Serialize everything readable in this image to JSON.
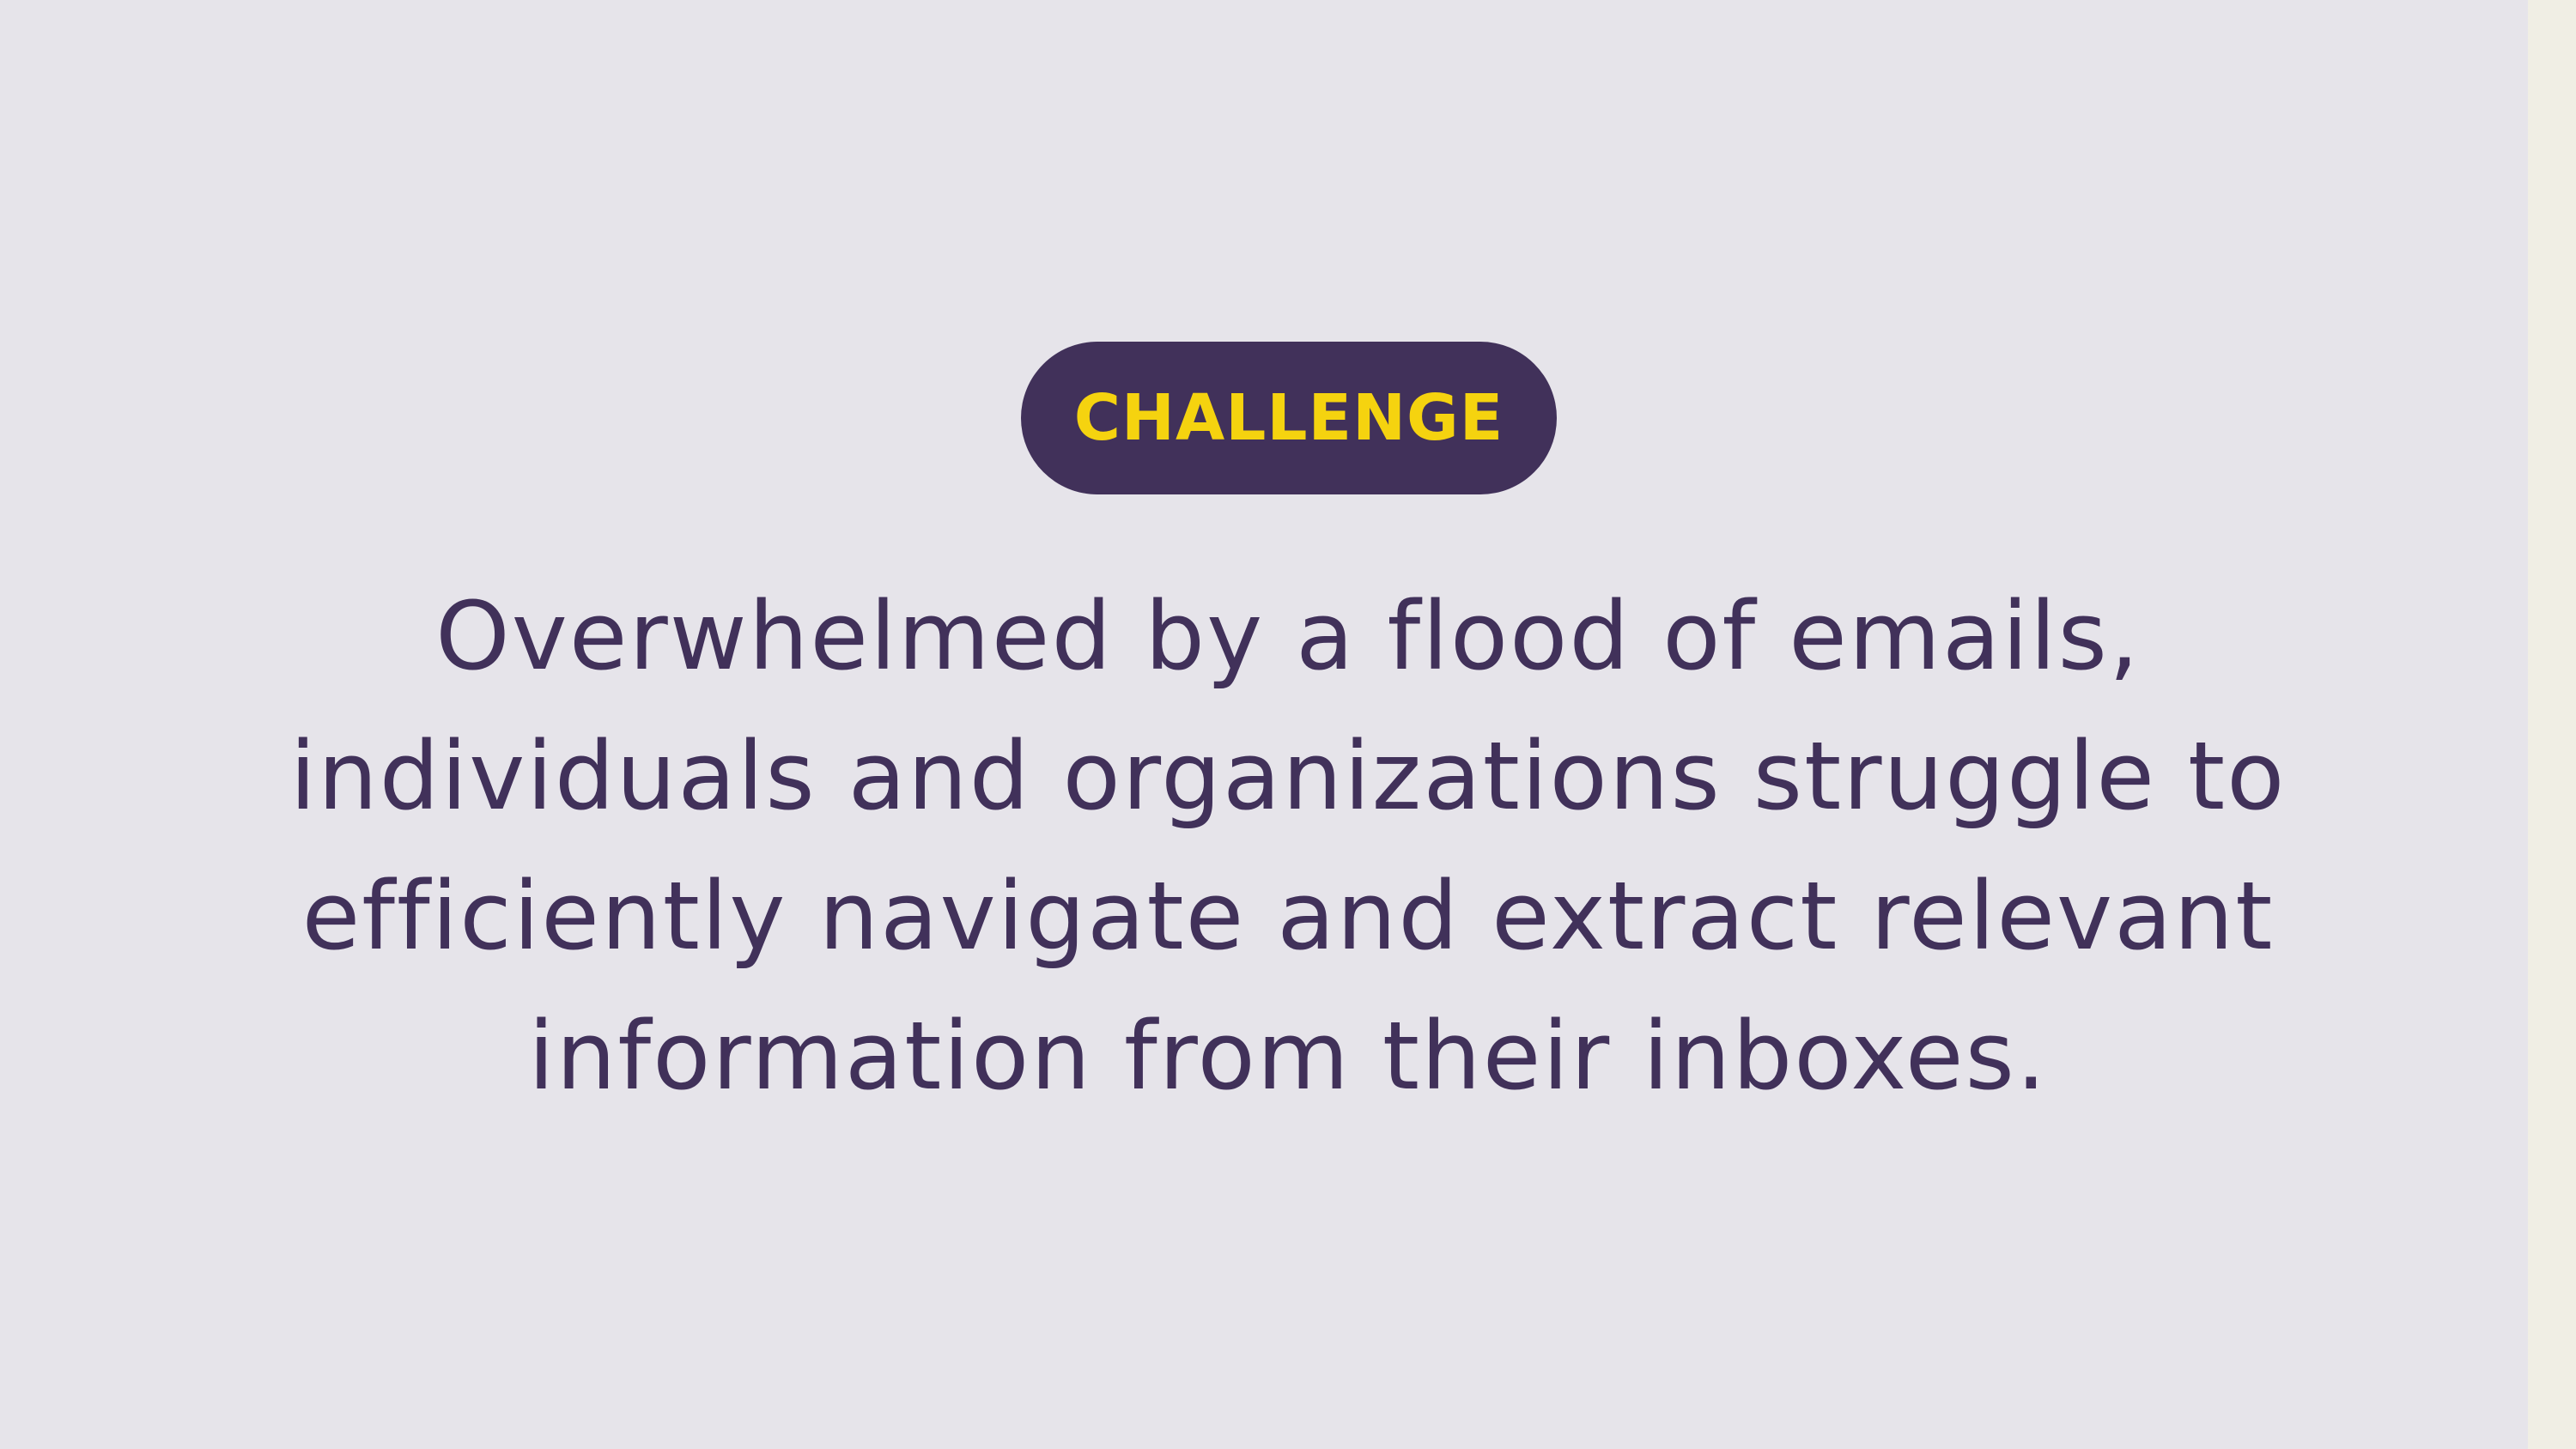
{
  "badge": {
    "label": "CHALLENGE"
  },
  "body": {
    "lines": [
      "Overwhelmed by a flood of emails,",
      "individuals and organizations struggle to",
      "efficiently navigate and extract relevant",
      "information from their inboxes."
    ]
  },
  "colors": {
    "background": "#e6e4ea",
    "accent": "#41315a",
    "highlight": "#f5d30f",
    "edge": "#f0eee4"
  }
}
